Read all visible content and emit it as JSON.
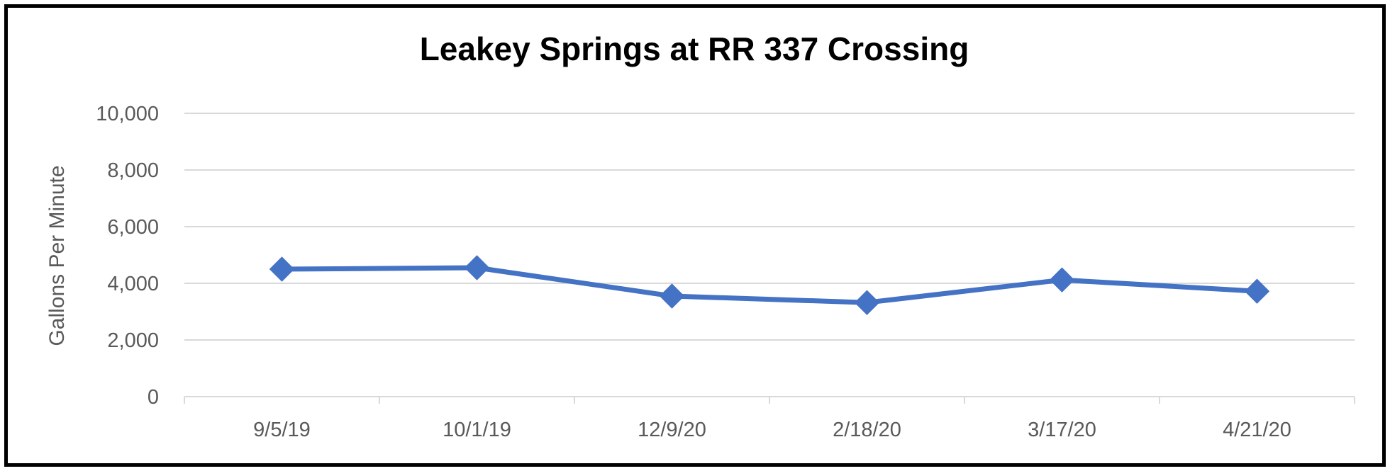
{
  "chart_data": {
    "type": "line",
    "title": "Leakey Springs at RR 337 Crossing",
    "xlabel": "",
    "ylabel": "Gallons Per Minute",
    "categories": [
      "9/5/19",
      "10/1/19",
      "12/9/20",
      "2/18/20",
      "3/17/20",
      "4/21/20"
    ],
    "series": [
      {
        "values": [
          4500,
          4550,
          3550,
          3320,
          4120,
          3720
        ]
      }
    ],
    "ylim": [
      0,
      10000
    ],
    "yticks": [
      0,
      2000,
      4000,
      6000,
      8000,
      10000
    ],
    "ytick_labels": [
      "0",
      "2,000",
      "4,000",
      "6,000",
      "8,000",
      "10,000"
    ],
    "grid": true,
    "legend": "none",
    "colors": {
      "series": "#4472C4",
      "grid": "#D9D9D9",
      "axis": "#D9D9D9",
      "text": "#595959",
      "border": "#000000"
    }
  }
}
